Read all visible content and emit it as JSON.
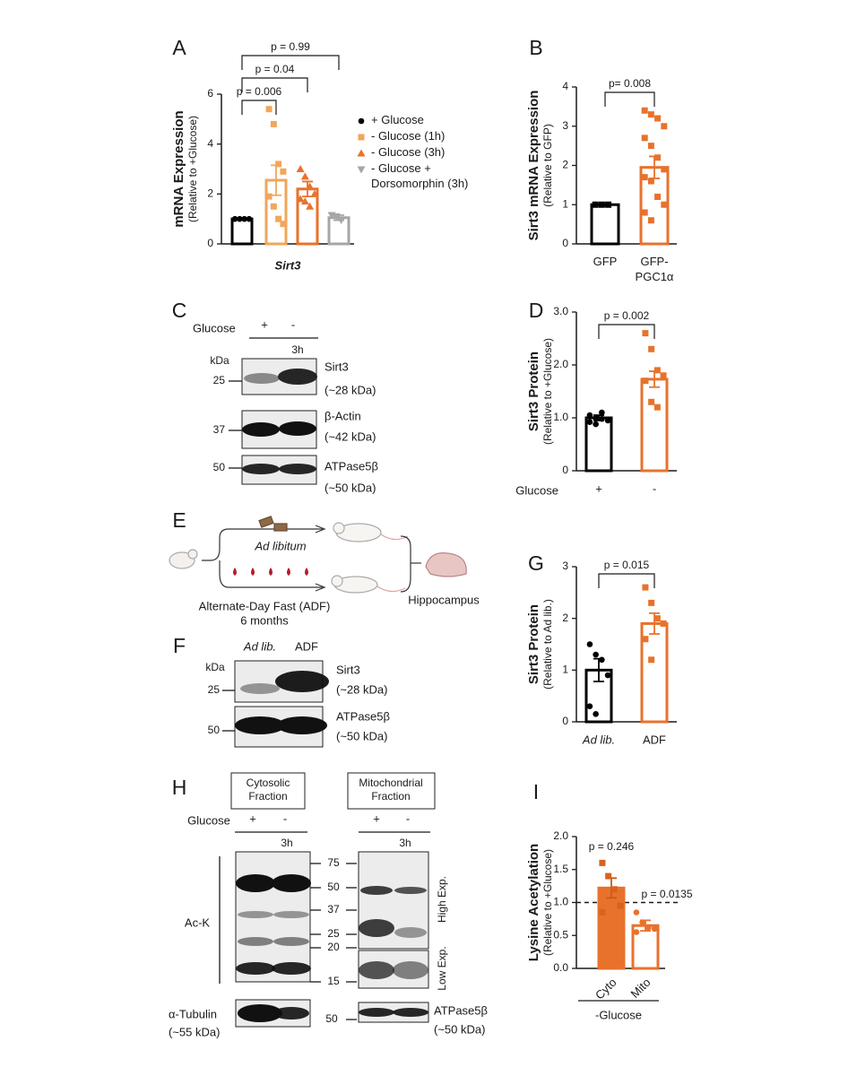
{
  "panel_labels": [
    "A",
    "B",
    "C",
    "D",
    "E",
    "F",
    "G",
    "H",
    "I"
  ],
  "chart_data": [
    {
      "type": "bar",
      "y_label": "mRNA Expression",
      "y_sublabel": "(Relative to +Glucose)",
      "x_label": "Sirt3",
      "ylim": [
        0,
        6
      ],
      "yticks": [
        0,
        2,
        4,
        6
      ],
      "series": [
        {
          "name": "+ Glucose",
          "color": "#000000",
          "filled": false,
          "marker": "circle",
          "values": [
            1.0
          ],
          "errors": [
            0.02
          ],
          "points": [
            [
              1.0,
              1.0,
              1.0,
              1.0
            ]
          ]
        },
        {
          "name": "- Glucose (1h)",
          "color": "#f2a65a",
          "filled": false,
          "marker": "square",
          "values": [
            2.55
          ],
          "errors": [
            0.6
          ],
          "points": [
            [
              5.4,
              4.8,
              3.2,
              2.9,
              1.9,
              1.5,
              1.0,
              0.8
            ]
          ]
        },
        {
          "name": "- Glucose (3h)",
          "color": "#e8722c",
          "filled": false,
          "marker": "triangle-up",
          "values": [
            2.2
          ],
          "errors": [
            0.3
          ],
          "points": [
            [
              3.0,
              2.7,
              2.3,
              2.0,
              1.8,
              1.7,
              1.5
            ]
          ]
        },
        {
          "name": "- Glucose + Dorsomorphin (3h)",
          "color": "#a6a6a6",
          "filled": false,
          "marker": "triangle-down",
          "values": [
            1.05
          ],
          "errors": [
            0.1
          ],
          "points": [
            [
              1.15,
              1.1,
              0.95
            ]
          ]
        }
      ],
      "annotations": [
        "p = 0.006",
        "p = 0.04",
        "p = 0.99"
      ]
    },
    {
      "type": "bar",
      "y_label": "Sirt3 mRNA Expression",
      "y_sublabel": "(Relative to GFP)",
      "ylim": [
        0,
        4
      ],
      "yticks": [
        0,
        1,
        2,
        3,
        4
      ],
      "categories": [
        "GFP",
        "GFP-PGC1α"
      ],
      "values": [
        1.0,
        1.95
      ],
      "errors": [
        0,
        0.28
      ],
      "points": [
        [
          1.0,
          1.0,
          1.0
        ],
        [
          3.4,
          3.3,
          3.2,
          3.0,
          2.7,
          2.5,
          2.2,
          1.9,
          1.7,
          1.6,
          1.2,
          1.0,
          0.8,
          0.6
        ]
      ],
      "colors": [
        "#000000",
        "#e8722c"
      ],
      "filled": [
        false,
        false
      ],
      "markers": [
        "square",
        "square"
      ],
      "annotations": [
        "p= 0.008"
      ]
    },
    {
      "type": "bar",
      "y_label": "Sirt3 Protein",
      "y_sublabel": "(Relative to +Glucose)",
      "x_label": "Glucose",
      "ylim": [
        0,
        3
      ],
      "yticks": [
        0,
        {
          "value": 1,
          "label": "1.0"
        },
        {
          "value": 2,
          "label": "2.0"
        },
        {
          "value": 3,
          "label": "3.0"
        }
      ],
      "categories": [
        "+",
        "-"
      ],
      "values": [
        1.0,
        1.73
      ],
      "errors": [
        0.05,
        0.15
      ],
      "points": [
        [
          1.05,
          1.0,
          0.98,
          0.95,
          0.92,
          0.88,
          1.1
        ],
        [
          2.6,
          2.3,
          1.9,
          1.8,
          1.7,
          1.3,
          1.2
        ]
      ],
      "colors": [
        "#000000",
        "#e8722c"
      ],
      "filled": [
        false,
        false
      ],
      "markers": [
        "circle",
        "square"
      ],
      "annotations": [
        "p = 0.002"
      ]
    },
    {
      "type": "bar",
      "y_label": "Sirt3 Protein",
      "y_sublabel": "(Relative to Ad lib.)",
      "ylim": [
        0,
        3
      ],
      "yticks": [
        0,
        1,
        2,
        3
      ],
      "categories": [
        "Ad lib.",
        "ADF"
      ],
      "values": [
        1.0,
        1.9
      ],
      "errors": [
        0.22,
        0.2
      ],
      "points": [
        [
          1.5,
          1.3,
          1.2,
          0.9,
          0.3,
          0.15
        ],
        [
          2.6,
          2.3,
          2.0,
          1.9,
          1.6,
          1.2
        ]
      ],
      "colors": [
        "#000000",
        "#e8722c"
      ],
      "filled": [
        false,
        false
      ],
      "markers": [
        "circle",
        "square"
      ],
      "annotations": [
        "p = 0.015"
      ]
    },
    {
      "type": "bar",
      "y_label": "Lysine Acetylation",
      "y_sublabel": "(Relative to +Glucose)",
      "x_label": "-Glucose",
      "ylim": [
        0,
        2
      ],
      "yticks": [
        {
          "value": 0,
          "label": "0.0"
        },
        {
          "value": 0.5,
          "label": "0.5"
        },
        {
          "value": 1,
          "label": "1.0"
        },
        {
          "value": 1.5,
          "label": "1.5"
        },
        {
          "value": 2,
          "label": "2.0"
        }
      ],
      "categories": [
        "Cyto",
        "Mito"
      ],
      "values": [
        1.22,
        0.65
      ],
      "errors": [
        0.15,
        0.08
      ],
      "points": [
        [
          1.6,
          1.4,
          1.2,
          0.95,
          0.85
        ],
        [
          0.85,
          0.7,
          0.62,
          0.6,
          0.55
        ]
      ],
      "colors": [
        "#e8722c",
        "#e8722c"
      ],
      "filled": [
        true,
        false
      ],
      "markers": [
        "square",
        "circle"
      ],
      "reference_line": 1.0,
      "annotations": [
        "p = 0.246",
        "p = 0.0135"
      ]
    }
  ],
  "panel_c": {
    "treatment_label": "Glucose",
    "conditions": [
      "+",
      "-"
    ],
    "time": "3h",
    "unit": "kDa",
    "markers": [
      25,
      37,
      50
    ],
    "bands": [
      {
        "name": "Sirt3",
        "size": "(~28 kDa)"
      },
      {
        "name": "β-Actin",
        "size": "(~42 kDa)"
      },
      {
        "name": "ATPase5β",
        "size": "(~50 kDa)"
      }
    ]
  },
  "panel_e": {
    "fed": "Ad libitum",
    "fasted": "Alternate-Day Fast (ADF)",
    "duration": "6 months",
    "tissue": "Hippocampus"
  },
  "panel_f": {
    "conditions": [
      "Ad lib.",
      "ADF"
    ],
    "unit": "kDa",
    "markers": [
      25,
      50
    ],
    "bands": [
      {
        "name": "Sirt3",
        "size": "(~28 kDa)"
      },
      {
        "name": "ATPase5β",
        "size": "(~50 kDa)"
      }
    ]
  },
  "panel_h": {
    "fractions": [
      "Cytosolic Fraction",
      "Mitochondrial Fraction"
    ],
    "treatment_label": "Glucose",
    "conditions": [
      "+",
      "-"
    ],
    "time": "3h",
    "target": "Ac-K",
    "markers": [
      75,
      50,
      37,
      25,
      20,
      15
    ],
    "loading_marker": 50,
    "exposures": [
      "High Exp.",
      "Low Exp."
    ],
    "loading": [
      {
        "name": "α-Tubulin",
        "size": "(~55 kDa)"
      },
      {
        "name": "ATPase5β",
        "size": "(~50 kDa)"
      }
    ]
  }
}
